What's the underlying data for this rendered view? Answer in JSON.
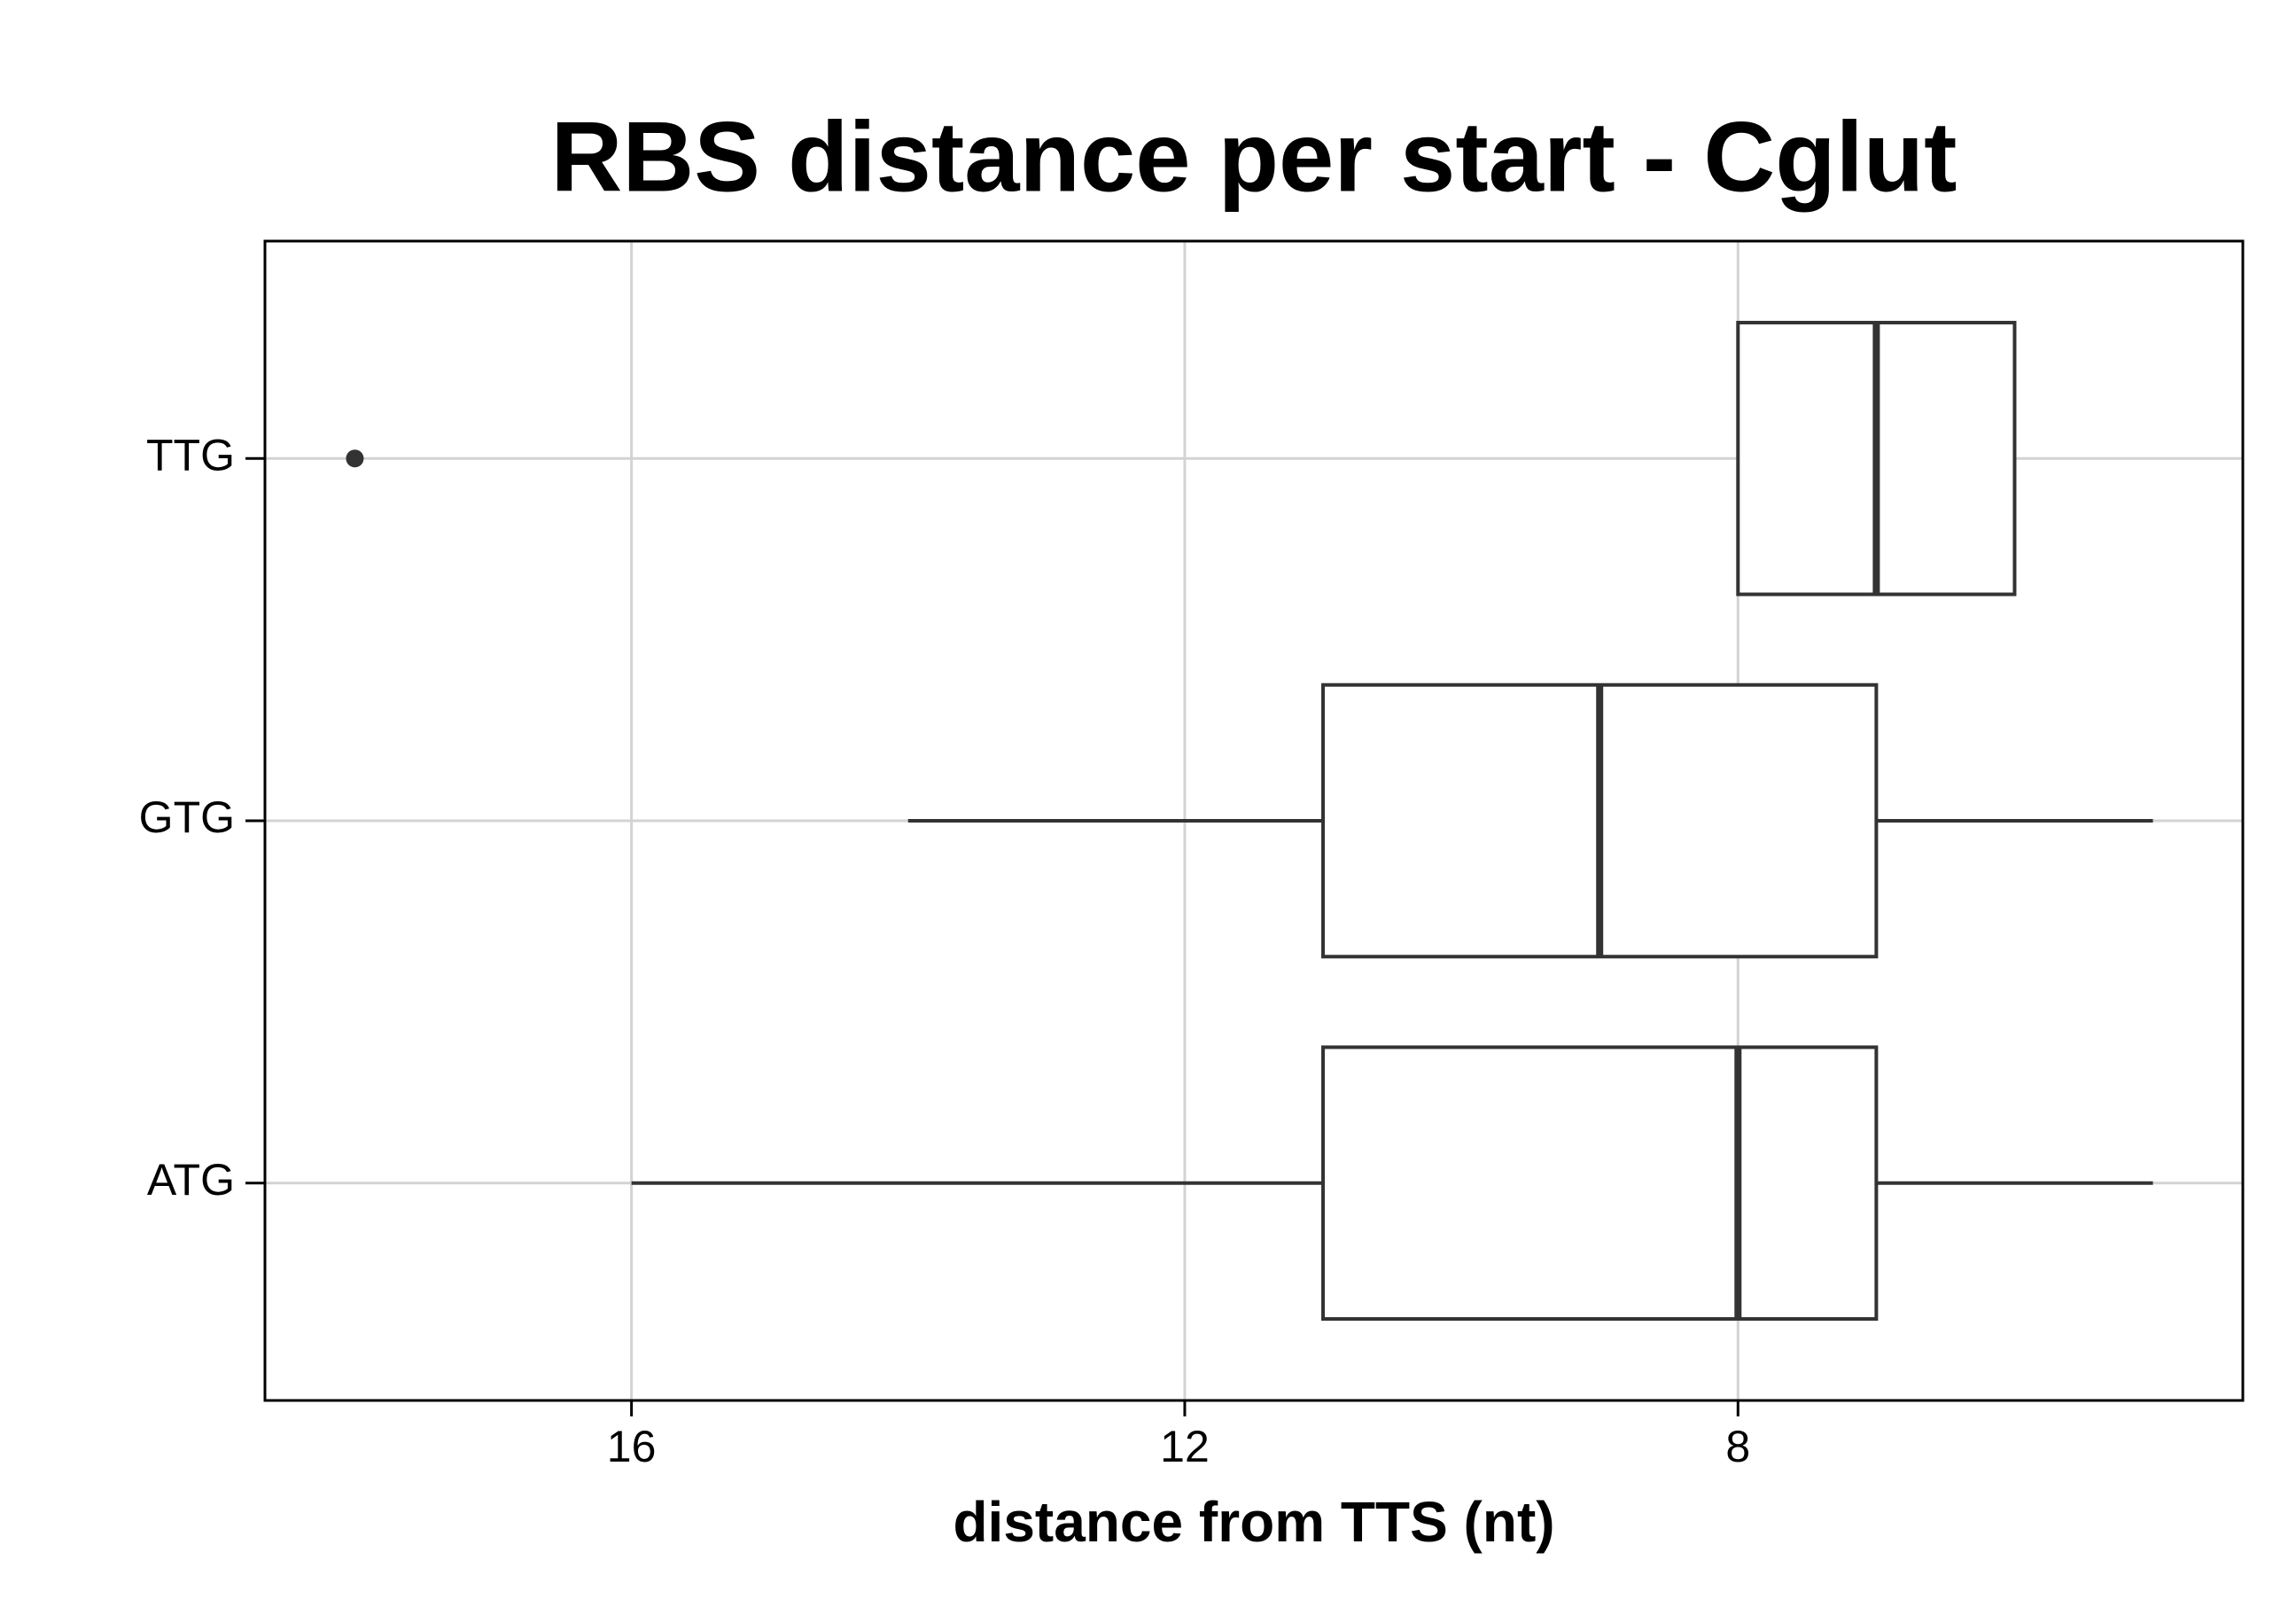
{
  "chart_data": {
    "type": "boxplot",
    "orientation": "horizontal",
    "title": "RBS distance per start - Cglut",
    "x_label": "distance from TTS (nt)",
    "categories": [
      "ATG",
      "GTG",
      "TTG"
    ],
    "boxes": [
      {
        "min": 5,
        "q1": 7,
        "median": 8,
        "q3": 11,
        "max": 16
      },
      {
        "min": 5,
        "q1": 7,
        "median": 9,
        "q3": 11,
        "max": 14
      },
      {
        "min": 6,
        "q1": 6,
        "median": 7,
        "q3": 8,
        "max": 8,
        "outliers": [
          18
        ]
      }
    ],
    "color": "#333333",
    "xlim": [
      18.65,
      4.35
    ],
    "xticks": [
      16,
      12,
      8
    ],
    "grid": true
  }
}
